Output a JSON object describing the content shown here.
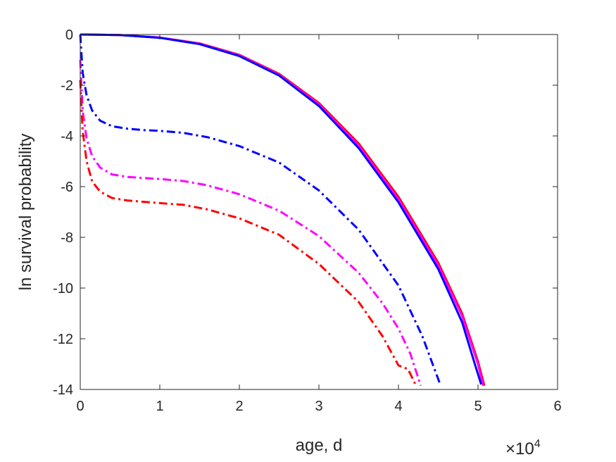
{
  "chart_data": {
    "type": "line",
    "xlabel": "age, d",
    "ylabel": "ln survival probability",
    "x_exponent_label": "×10",
    "x_exponent": "4",
    "xlim": [
      0,
      60000
    ],
    "ylim": [
      -14,
      0
    ],
    "xticks": [
      0,
      10000,
      20000,
      30000,
      40000,
      50000,
      60000
    ],
    "xtick_labels": [
      "0",
      "1",
      "2",
      "3",
      "4",
      "5",
      "6"
    ],
    "yticks": [
      0,
      -2,
      -4,
      -6,
      -8,
      -10,
      -12,
      -14
    ],
    "ytick_labels": [
      "0",
      "-2",
      "-4",
      "-6",
      "-8",
      "-10",
      "-12",
      "-14"
    ],
    "grid": false,
    "series": [
      {
        "color": "#ff0000",
        "style": "solid",
        "x": [
          0,
          5000,
          10000,
          15000,
          20000,
          25000,
          30000,
          35000,
          40000,
          45000,
          48000,
          50000,
          50800
        ],
        "y": [
          0,
          -0.02,
          -0.12,
          -0.35,
          -0.8,
          -1.55,
          -2.7,
          -4.3,
          -6.4,
          -9.0,
          -11.0,
          -12.9,
          -13.85
        ]
      },
      {
        "color": "#ff00ff",
        "style": "solid",
        "x": [
          0,
          5000,
          10000,
          15000,
          20000,
          25000,
          30000,
          35000,
          40000,
          45000,
          48000,
          50000,
          50650
        ],
        "y": [
          0,
          -0.02,
          -0.12,
          -0.36,
          -0.82,
          -1.58,
          -2.75,
          -4.38,
          -6.5,
          -9.1,
          -11.1,
          -13.0,
          -13.85
        ]
      },
      {
        "color": "#0000ff",
        "style": "solid",
        "x": [
          0,
          5000,
          10000,
          15000,
          20000,
          25000,
          30000,
          35000,
          40000,
          45000,
          48000,
          49600,
          50400
        ],
        "y": [
          0,
          -0.02,
          -0.13,
          -0.38,
          -0.85,
          -1.62,
          -2.82,
          -4.48,
          -6.62,
          -9.25,
          -11.35,
          -13.0,
          -13.8
        ]
      },
      {
        "color": "#0000ff",
        "style": "dashdot",
        "x": [
          0,
          300,
          800,
          1500,
          2500,
          4000,
          6000,
          8000,
          10000,
          13000,
          16000,
          20000,
          25000,
          30000,
          35000,
          40000,
          43000,
          45300
        ],
        "y": [
          0,
          -1.5,
          -2.4,
          -3.0,
          -3.4,
          -3.62,
          -3.72,
          -3.77,
          -3.8,
          -3.88,
          -4.05,
          -4.4,
          -5.05,
          -6.15,
          -7.7,
          -9.9,
          -11.9,
          -13.85
        ]
      },
      {
        "color": "#ff00ff",
        "style": "dashdot",
        "x": [
          0,
          300,
          800,
          1500,
          2500,
          4000,
          6000,
          8000,
          10000,
          13000,
          16000,
          20000,
          25000,
          30000,
          35000,
          38000,
          40000,
          41500,
          42800
        ],
        "y": [
          -1.0,
          -3.0,
          -4.1,
          -4.8,
          -5.25,
          -5.52,
          -5.62,
          -5.66,
          -5.7,
          -5.78,
          -5.95,
          -6.3,
          -6.95,
          -7.95,
          -9.4,
          -10.6,
          -11.6,
          -12.6,
          -13.85
        ]
      },
      {
        "color": "#ff0000",
        "style": "dashdot",
        "x": [
          0,
          300,
          800,
          1500,
          2500,
          4000,
          6000,
          8000,
          10000,
          13000,
          16000,
          20000,
          25000,
          30000,
          35000,
          38000,
          40000,
          41200,
          42200
        ],
        "y": [
          -1.8,
          -3.8,
          -5.0,
          -5.8,
          -6.2,
          -6.45,
          -6.55,
          -6.6,
          -6.65,
          -6.72,
          -6.9,
          -7.25,
          -7.9,
          -9.05,
          -10.55,
          -11.9,
          -13.05,
          -13.2,
          -13.85
        ]
      }
    ]
  }
}
